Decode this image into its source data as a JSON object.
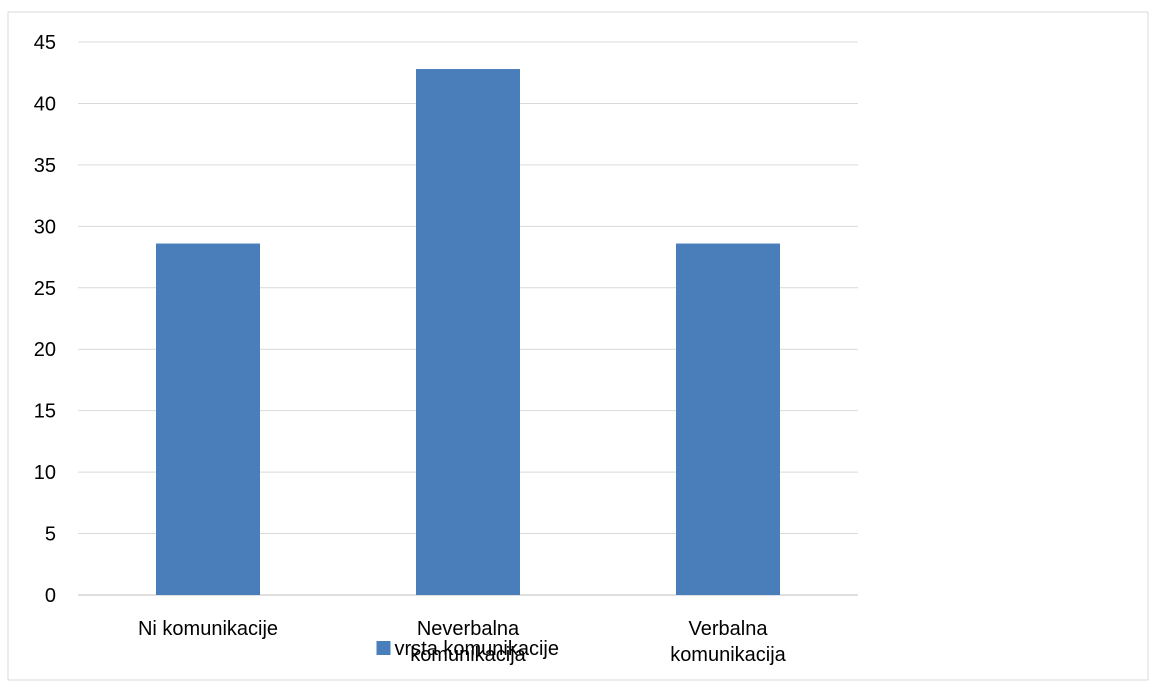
{
  "chart_data": {
    "type": "bar",
    "categories": [
      [
        "Ni komunikacije"
      ],
      [
        "Neverbalna",
        "komunikacija"
      ],
      [
        "Verbalna",
        "komunikacija"
      ]
    ],
    "series": [
      {
        "name": "vrsta komunikacije",
        "values": [
          28.6,
          42.8,
          28.6
        ],
        "color": "#4a7ebb"
      }
    ],
    "ylim": [
      0,
      45
    ],
    "yticks": [
      0,
      5,
      10,
      15,
      20,
      25,
      30,
      35,
      40,
      45
    ],
    "grid": true,
    "legend": "bottom",
    "colors": {
      "bar": "#4a7ebb",
      "grid": "#d9d9d9",
      "axis": "#bfbfbf",
      "text": "#000000",
      "border": "#d9d9d9"
    }
  }
}
